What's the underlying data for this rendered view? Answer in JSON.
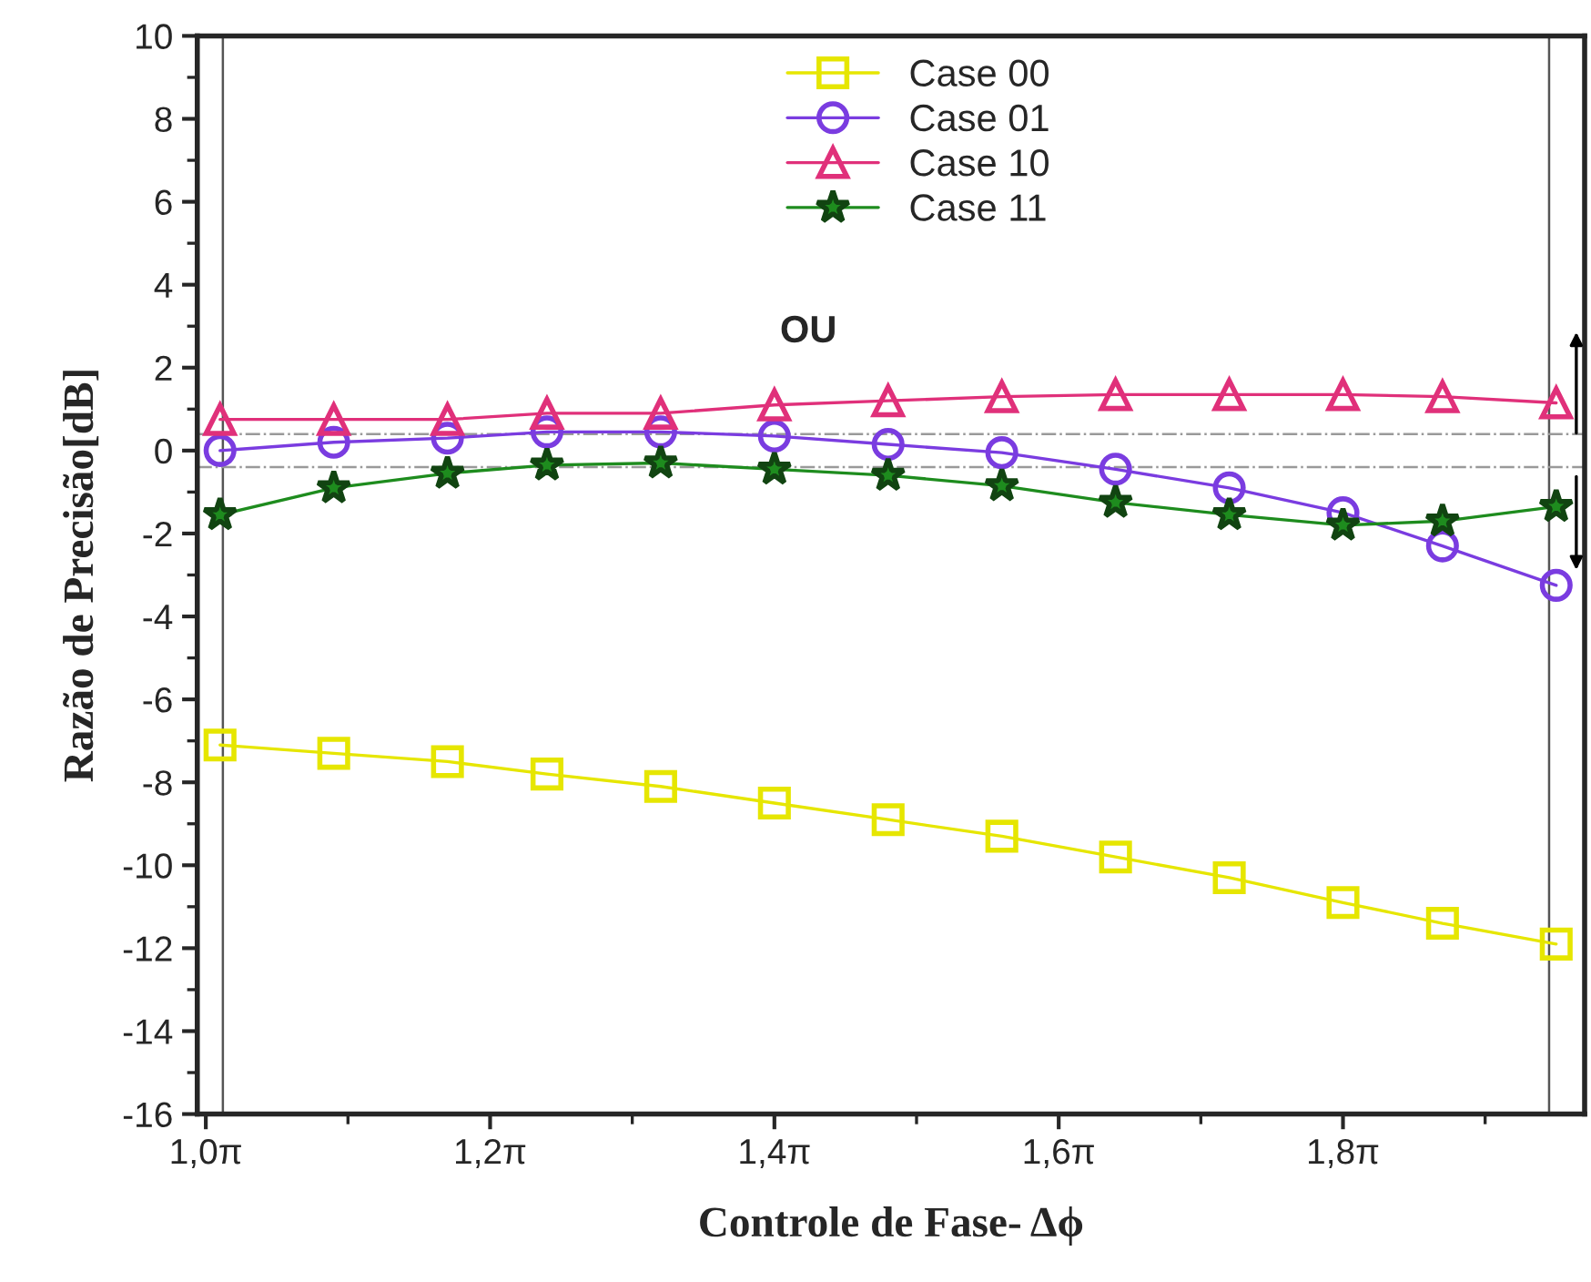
{
  "chart_data": {
    "type": "line",
    "xlabel": "Controle de Fase- Δϕ",
    "ylabel": "Razão de Precisão[dB]",
    "x": [
      1.01,
      1.09,
      1.17,
      1.24,
      1.32,
      1.4,
      1.48,
      1.56,
      1.64,
      1.72,
      1.8,
      1.87,
      1.95
    ],
    "series": [
      {
        "name": "Case 00",
        "color": "#e6e600",
        "marker": "square",
        "values": [
          -7.1,
          -7.3,
          -7.5,
          -7.8,
          -8.1,
          -8.5,
          -8.9,
          -9.3,
          -9.8,
          -10.3,
          -10.9,
          -11.4,
          -11.9
        ]
      },
      {
        "name": "Case 01",
        "color": "#7a3ce0",
        "marker": "circle",
        "values": [
          0.0,
          0.2,
          0.3,
          0.45,
          0.45,
          0.35,
          0.15,
          -0.05,
          -0.45,
          -0.9,
          -1.5,
          -2.3,
          -3.25
        ]
      },
      {
        "name": "Case 10",
        "color": "#e0307a",
        "marker": "triangle",
        "values": [
          0.75,
          0.75,
          0.75,
          0.9,
          0.9,
          1.1,
          1.2,
          1.3,
          1.35,
          1.35,
          1.35,
          1.3,
          1.15
        ]
      },
      {
        "name": "Case 11",
        "color": "#1e8c1e",
        "marker": "star",
        "values": [
          -1.55,
          -0.9,
          -0.55,
          -0.35,
          -0.3,
          -0.45,
          -0.6,
          -0.85,
          -1.25,
          -1.55,
          -1.8,
          -1.7,
          -1.35
        ]
      }
    ],
    "annotations": [
      "OU"
    ],
    "ref_lines": [
      {
        "axis": "x",
        "value": 1.012,
        "color": "#555555",
        "line_style": "solid"
      },
      {
        "axis": "x",
        "value": 1.945,
        "color": "#555555",
        "line_style": "solid"
      },
      {
        "axis": "y",
        "value": 0.4,
        "color": "#999999",
        "line_style": "dashdot"
      },
      {
        "axis": "y",
        "value": -0.4,
        "color": "#999999",
        "line_style": "dashdot"
      }
    ],
    "xlim": [
      0.994,
      1.97
    ],
    "xticks": [
      {
        "value": 1.0,
        "label": "1,0π"
      },
      {
        "value": 1.2,
        "label": "1,2π"
      },
      {
        "value": 1.4,
        "label": "1,4π"
      },
      {
        "value": 1.6,
        "label": "1,6π"
      },
      {
        "value": 1.8,
        "label": "1,8π"
      }
    ],
    "ylim": [
      -16,
      10
    ],
    "yticks": [
      -16,
      -14,
      -12,
      -10,
      -8,
      -6,
      -4,
      -2,
      0,
      2,
      4,
      6,
      8,
      10
    ],
    "grid": false,
    "legend": "top",
    "line_style": "solid"
  }
}
